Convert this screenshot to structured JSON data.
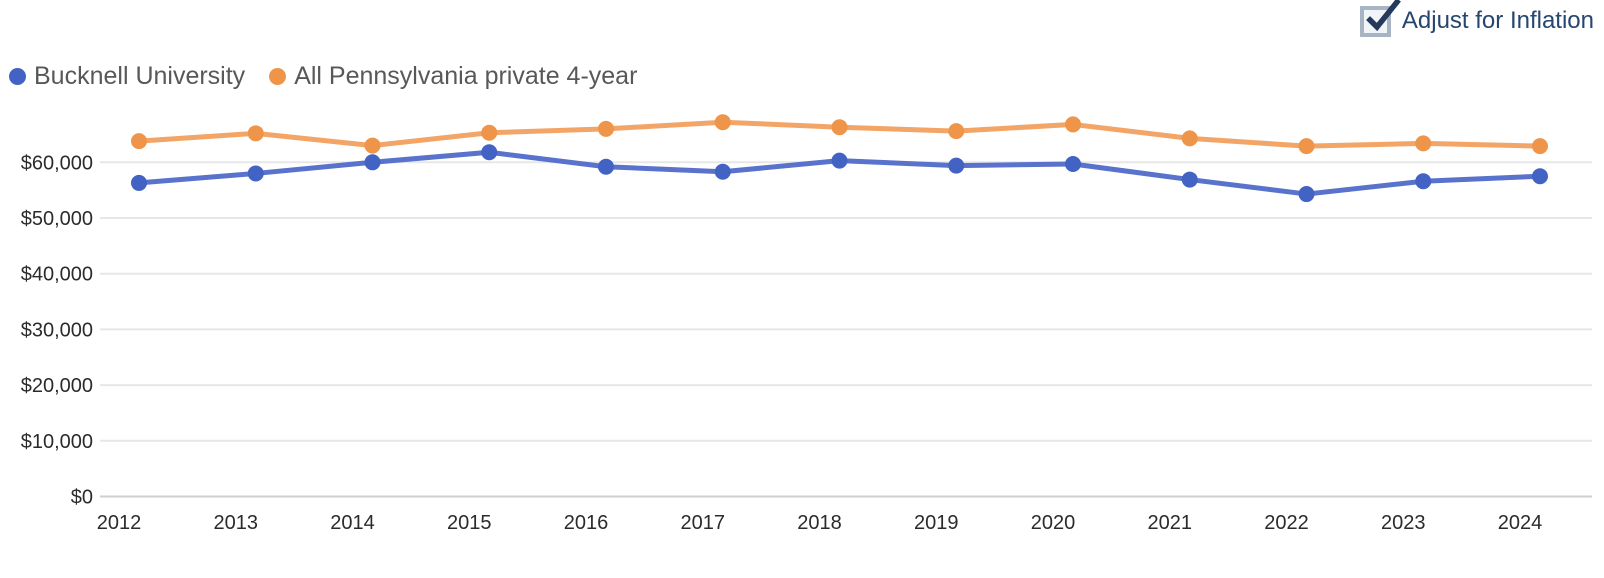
{
  "controls": {
    "adjust_for_inflation_label": "Adjust for Inflation",
    "adjust_for_inflation_checked": true,
    "checkbox_border_color": "#a6b4c3",
    "checkbox_fill_color": "#f2f5f8",
    "checkmark_color": "#233a5c",
    "label_color": "#26466f"
  },
  "legend": [
    {
      "label": "Bucknell University",
      "color": "#4262c4"
    },
    {
      "label": "All Pennsylvania private 4-year",
      "color": "#ee9549"
    }
  ],
  "chart_data": {
    "type": "line",
    "title": "",
    "xlabel": "",
    "ylabel": "",
    "categories": [
      "2012",
      "2013",
      "2014",
      "2015",
      "2016",
      "2017",
      "2018",
      "2019",
      "2020",
      "2021",
      "2022",
      "2023",
      "2024"
    ],
    "series": [
      {
        "name": "Bucknell University",
        "line_color": "#5973cd",
        "point_color": "#4262c4",
        "values": [
          56300,
          58000,
          60000,
          61800,
          59200,
          58300,
          60300,
          59400,
          59700,
          56900,
          54300,
          56600,
          57500
        ]
      },
      {
        "name": "All Pennsylvania private 4-year",
        "line_color": "#f2a566",
        "point_color": "#ee9549",
        "values": [
          63800,
          65200,
          63000,
          65300,
          66000,
          67200,
          66300,
          65600,
          66800,
          64300,
          62900,
          63400,
          62900
        ]
      }
    ],
    "ylim": [
      0,
      70000
    ],
    "yticks": [
      0,
      10000,
      20000,
      30000,
      40000,
      50000,
      60000
    ],
    "ytick_labels": [
      "$0",
      "$10,000",
      "$20,000",
      "$30,000",
      "$40,000",
      "$50,000",
      "$60,000"
    ],
    "grid": true,
    "legend_position": "top-left",
    "axis_text_color": "#2b2b2b",
    "grid_color": "#e7e7e7",
    "zero_line_color": "#cfcfcf"
  }
}
